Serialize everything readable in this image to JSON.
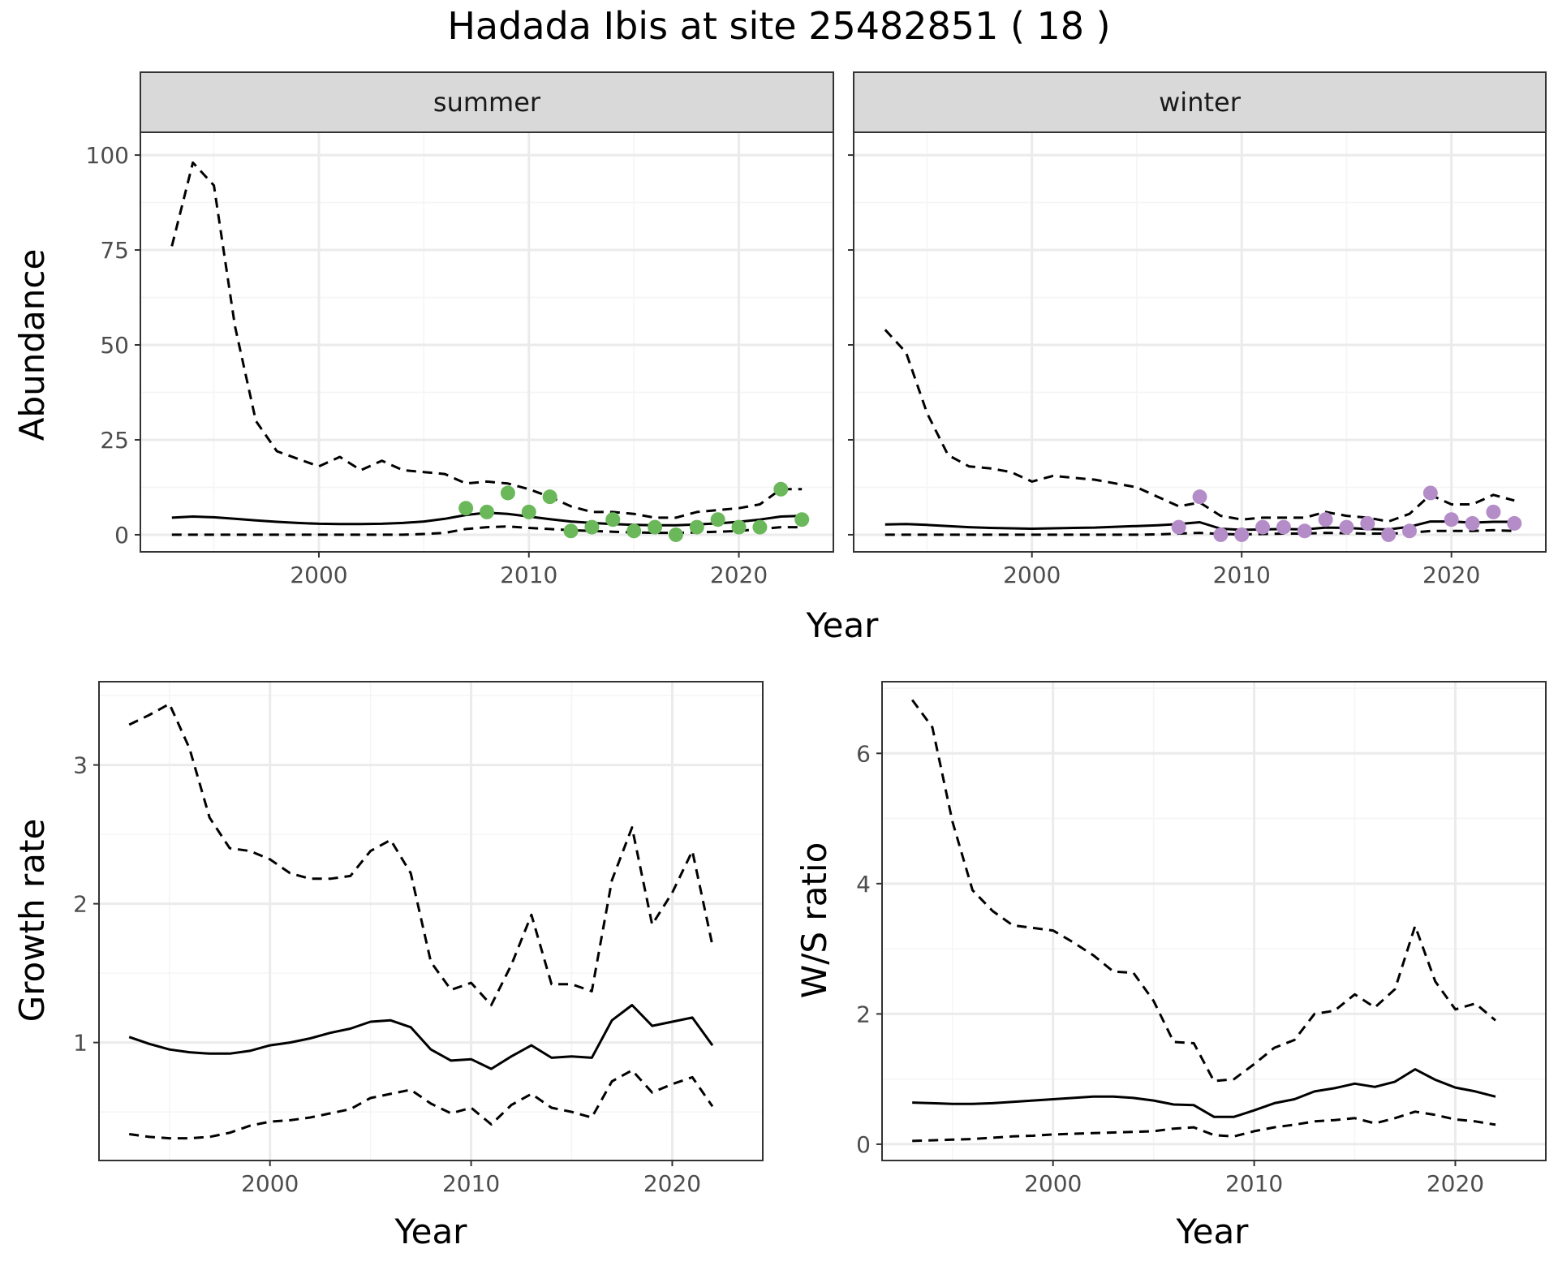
{
  "title": "Hadada Ibis at site 25482851 ( 18 )",
  "colors": {
    "summer_points": "#6ab85a",
    "winter_points": "#b48cc8",
    "strip_bg": "#d9d9d9",
    "grid_major": "#ebebeb",
    "grid_minor": "#f5f5f5",
    "line": "#000000"
  },
  "chart_data": [
    {
      "type": "line",
      "panel": "summer",
      "strip": "summer",
      "xlabel": "Year",
      "ylabel": "Abundance",
      "xlim": [
        1991.5,
        2024.5
      ],
      "ylim": [
        -4.5,
        106
      ],
      "xticks": [
        2000,
        2010,
        2020
      ],
      "yticks": [
        0,
        25,
        50,
        75,
        100
      ],
      "grid": true,
      "x": [
        1993,
        1994,
        1995,
        1996,
        1997,
        1998,
        1999,
        2000,
        2001,
        2002,
        2003,
        2004,
        2005,
        2006,
        2007,
        2008,
        2009,
        2010,
        2011,
        2012,
        2013,
        2014,
        2015,
        2016,
        2017,
        2018,
        2019,
        2020,
        2021,
        2022,
        2023
      ],
      "series": [
        {
          "role": "mean",
          "style": "solid",
          "values": [
            4.5,
            4.8,
            4.6,
            4.2,
            3.8,
            3.4,
            3.1,
            2.9,
            2.8,
            2.8,
            2.9,
            3.1,
            3.5,
            4.2,
            5.2,
            5.8,
            5.5,
            4.8,
            4.1,
            3.5,
            3.1,
            2.8,
            2.6,
            2.5,
            2.5,
            2.7,
            3.0,
            3.4,
            4.0,
            4.8,
            5.0
          ]
        },
        {
          "role": "upper",
          "style": "dashed",
          "values": [
            76,
            98,
            92,
            55,
            30,
            22,
            20,
            18,
            20.5,
            17,
            19.5,
            17,
            16.5,
            16,
            13.5,
            14,
            13.5,
            12,
            10,
            7.5,
            6,
            6,
            5.5,
            4.5,
            4.5,
            6,
            6.5,
            7,
            8,
            12,
            12
          ]
        },
        {
          "role": "lower",
          "style": "dashed",
          "values": [
            0,
            0,
            0,
            0,
            0,
            0,
            0,
            0,
            0,
            0,
            0,
            0,
            0.2,
            0.5,
            1.5,
            2,
            2.2,
            1.8,
            1.5,
            1.2,
            1.0,
            0.8,
            0.6,
            0.5,
            0.5,
            0.6,
            0.8,
            1.0,
            1.5,
            2.0,
            2.0
          ]
        }
      ],
      "points": {
        "x": [
          2007,
          2008,
          2009,
          2010,
          2011,
          2012,
          2013,
          2014,
          2015,
          2016,
          2017,
          2018,
          2019,
          2020,
          2021,
          2022,
          2023
        ],
        "y": [
          7,
          6,
          11,
          6,
          10,
          1,
          2,
          4,
          1,
          2,
          0,
          2,
          4,
          2,
          2,
          12,
          4
        ]
      }
    },
    {
      "type": "line",
      "panel": "winter",
      "strip": "winter",
      "xlabel": "Year",
      "ylabel": "Abundance",
      "xlim": [
        1991.5,
        2024.5
      ],
      "ylim": [
        -4.5,
        106
      ],
      "xticks": [
        2000,
        2010,
        2020
      ],
      "yticks": [
        0,
        25,
        50,
        75,
        100
      ],
      "grid": true,
      "x": [
        1993,
        1994,
        1995,
        1996,
        1997,
        1998,
        1999,
        2000,
        2001,
        2002,
        2003,
        2004,
        2005,
        2006,
        2007,
        2008,
        2009,
        2010,
        2011,
        2012,
        2013,
        2014,
        2015,
        2016,
        2017,
        2018,
        2019,
        2020,
        2021,
        2022,
        2023
      ],
      "series": [
        {
          "role": "mean",
          "style": "solid",
          "values": [
            2.7,
            2.8,
            2.6,
            2.3,
            2.0,
            1.8,
            1.7,
            1.6,
            1.7,
            1.8,
            1.9,
            2.1,
            2.3,
            2.5,
            2.8,
            3.3,
            1.6,
            1.3,
            1.4,
            1.5,
            1.4,
            1.9,
            1.8,
            1.5,
            1.4,
            2.1,
            3.5,
            3.5,
            3.2,
            3.4,
            3.4
          ]
        },
        {
          "role": "upper",
          "style": "dashed",
          "values": [
            54,
            48,
            32,
            21,
            18,
            17.5,
            16.5,
            14,
            15.5,
            15,
            14.5,
            13.5,
            12.5,
            10,
            7.5,
            8.5,
            5,
            4,
            4.5,
            4.5,
            4.5,
            6,
            5,
            4.5,
            3.5,
            5.5,
            10.5,
            8,
            8,
            10.5,
            9
          ]
        },
        {
          "role": "lower",
          "style": "dashed",
          "values": [
            0,
            0,
            0,
            0,
            0,
            0,
            0,
            0,
            0,
            0,
            0,
            0,
            0,
            0.1,
            0.3,
            0.5,
            0.2,
            0.1,
            0.2,
            0.3,
            0.3,
            0.5,
            0.4,
            0.3,
            0.3,
            0.5,
            1.0,
            1.0,
            1.0,
            1.2,
            1.0
          ]
        }
      ],
      "points": {
        "x": [
          2007,
          2008,
          2009,
          2010,
          2011,
          2012,
          2013,
          2014,
          2015,
          2016,
          2017,
          2018,
          2019,
          2020,
          2021,
          2022,
          2023
        ],
        "y": [
          2,
          10,
          0,
          0,
          2,
          2,
          1,
          4,
          2,
          3,
          0,
          1,
          11,
          4,
          3,
          6,
          3
        ]
      }
    },
    {
      "type": "line",
      "panel": "growth",
      "xlabel": "Year",
      "ylabel": "Growth rate",
      "xlim": [
        1991.5,
        2024.5
      ],
      "ylim": [
        0.15,
        3.6
      ],
      "xticks": [
        2000,
        2010,
        2020
      ],
      "yticks": [
        1,
        2,
        3
      ],
      "grid": true,
      "x": [
        1993,
        1994,
        1995,
        1996,
        1997,
        1998,
        1999,
        2000,
        2001,
        2002,
        2003,
        2004,
        2005,
        2006,
        2007,
        2008,
        2009,
        2010,
        2011,
        2012,
        2013,
        2014,
        2015,
        2016,
        2017,
        2018,
        2019,
        2020,
        2021,
        2022
      ],
      "series": [
        {
          "role": "mean",
          "style": "solid",
          "values": [
            1.04,
            0.99,
            0.95,
            0.93,
            0.92,
            0.92,
            0.94,
            0.98,
            1.0,
            1.03,
            1.07,
            1.1,
            1.15,
            1.16,
            1.11,
            0.95,
            0.87,
            0.88,
            0.81,
            0.9,
            0.98,
            0.89,
            0.9,
            0.89,
            1.16,
            1.27,
            1.12,
            1.15,
            1.18,
            0.98
          ]
        },
        {
          "role": "upper",
          "style": "dashed",
          "values": [
            3.29,
            3.36,
            3.44,
            3.12,
            2.62,
            2.4,
            2.38,
            2.32,
            2.22,
            2.18,
            2.18,
            2.2,
            2.38,
            2.46,
            2.22,
            1.58,
            1.38,
            1.43,
            1.27,
            1.56,
            1.92,
            1.42,
            1.42,
            1.37,
            2.17,
            2.55,
            1.85,
            2.08,
            2.38,
            1.7
          ]
        },
        {
          "role": "lower",
          "style": "dashed",
          "values": [
            0.34,
            0.32,
            0.31,
            0.31,
            0.32,
            0.35,
            0.4,
            0.43,
            0.44,
            0.46,
            0.49,
            0.52,
            0.6,
            0.63,
            0.66,
            0.56,
            0.49,
            0.53,
            0.41,
            0.55,
            0.63,
            0.53,
            0.5,
            0.46,
            0.72,
            0.8,
            0.64,
            0.7,
            0.75,
            0.54
          ]
        }
      ]
    },
    {
      "type": "line",
      "panel": "ratio",
      "xlabel": "Year",
      "ylabel": "W/S ratio",
      "xlim": [
        1991.5,
        2024.5
      ],
      "ylim": [
        -0.25,
        7.1
      ],
      "xticks": [
        2000,
        2010,
        2020
      ],
      "yticks": [
        0,
        2,
        4,
        6
      ],
      "grid": true,
      "x": [
        1993,
        1994,
        1995,
        1996,
        1997,
        1998,
        1999,
        2000,
        2001,
        2002,
        2003,
        2004,
        2005,
        2006,
        2007,
        2008,
        2009,
        2010,
        2011,
        2012,
        2013,
        2014,
        2015,
        2016,
        2017,
        2018,
        2019,
        2020,
        2021,
        2022
      ],
      "series": [
        {
          "role": "mean",
          "style": "solid",
          "values": [
            0.64,
            0.63,
            0.62,
            0.62,
            0.63,
            0.65,
            0.67,
            0.69,
            0.71,
            0.73,
            0.73,
            0.71,
            0.67,
            0.61,
            0.6,
            0.42,
            0.42,
            0.52,
            0.63,
            0.69,
            0.81,
            0.86,
            0.93,
            0.88,
            0.96,
            1.15,
            0.99,
            0.87,
            0.81,
            0.73
          ]
        },
        {
          "role": "upper",
          "style": "dashed",
          "values": [
            6.82,
            6.4,
            4.95,
            3.9,
            3.58,
            3.36,
            3.32,
            3.28,
            3.1,
            2.9,
            2.65,
            2.63,
            2.2,
            1.57,
            1.55,
            0.97,
            1.0,
            1.23,
            1.48,
            1.6,
            2.0,
            2.05,
            2.3,
            2.1,
            2.38,
            3.35,
            2.5,
            2.07,
            2.16,
            1.9
          ]
        },
        {
          "role": "lower",
          "style": "dashed",
          "values": [
            0.05,
            0.06,
            0.07,
            0.08,
            0.1,
            0.12,
            0.13,
            0.15,
            0.16,
            0.17,
            0.18,
            0.19,
            0.2,
            0.24,
            0.26,
            0.14,
            0.12,
            0.2,
            0.26,
            0.3,
            0.35,
            0.37,
            0.4,
            0.32,
            0.4,
            0.5,
            0.45,
            0.38,
            0.35,
            0.3
          ]
        }
      ]
    }
  ]
}
